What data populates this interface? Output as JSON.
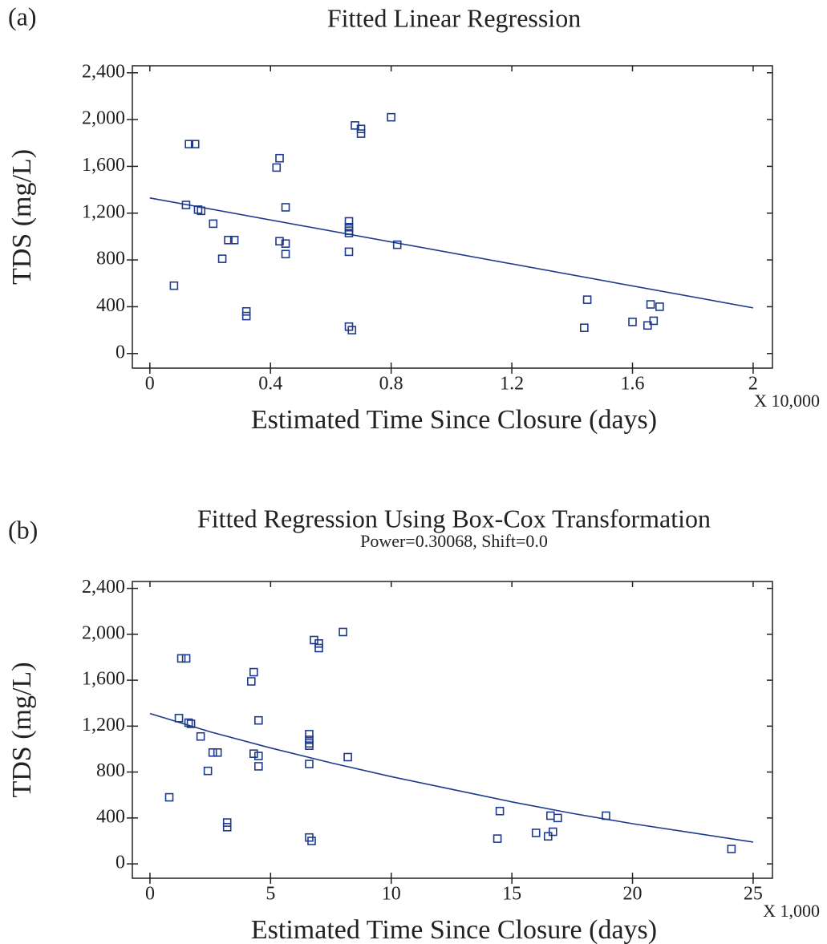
{
  "chart_data": [
    {
      "type": "scatter",
      "panel_label": "(a)",
      "title": "Fitted Linear Regression",
      "x_label": "Estimated Time Since Closure (days)",
      "y_label": "TDS (mg/L)",
      "x_multiplier": "X 10,000",
      "xlim": [
        -0.058,
        2.064
      ],
      "ylim": [
        -125,
        2460
      ],
      "xticks": [
        0,
        0.4,
        0.8,
        1.2,
        1.6,
        2
      ],
      "yticks": [
        0,
        400,
        800,
        {
          "value": 1200,
          "label": "1,200"
        },
        {
          "value": 1600,
          "label": "1,600"
        },
        {
          "value": 2000,
          "label": "2,000"
        },
        {
          "value": 2400,
          "label": "2,400"
        }
      ],
      "series": [
        {
          "color": "#1f3a8a",
          "x": [
            0.08,
            0.12,
            0.13,
            0.15,
            0.16,
            0.17,
            0.21,
            0.24,
            0.26,
            0.28,
            0.32,
            0.32,
            0.42,
            0.43,
            0.43,
            0.45,
            0.45,
            0.45,
            0.66,
            0.66,
            0.66,
            0.66,
            0.66,
            0.66,
            0.67,
            0.68,
            0.7,
            0.7,
            0.8,
            0.82,
            1.44,
            1.45,
            1.6,
            1.65,
            1.66,
            1.67,
            1.69
          ],
          "values": [
            580,
            1270,
            1790,
            1790,
            1230,
            1220,
            1110,
            810,
            970,
            970,
            360,
            320,
            1590,
            1670,
            960,
            940,
            1250,
            850,
            1130,
            1080,
            1050,
            1030,
            870,
            230,
            200,
            1950,
            1920,
            1880,
            2020,
            930,
            220,
            460,
            270,
            240,
            420,
            280,
            400
          ]
        }
      ],
      "fit": {
        "color": "#1f3a8a",
        "x": [
          0,
          2
        ],
        "values": [
          1330,
          390
        ]
      }
    },
    {
      "type": "scatter",
      "panel_label": "(b)",
      "title": "Fitted Regression Using Box-Cox Transformation",
      "subtitle": "Power=0.30068, Shift=0.0",
      "x_label": "Estimated Time Since Closure (days)",
      "y_label": "TDS (mg/L)",
      "x_multiplier": "X 1,000",
      "xlim": [
        -0.73,
        25.8
      ],
      "ylim": [
        -125,
        2460
      ],
      "xticks": [
        0,
        5,
        10,
        15,
        20,
        25
      ],
      "yticks": [
        0,
        400,
        800,
        {
          "value": 1200,
          "label": "1,200"
        },
        {
          "value": 1600,
          "label": "1,600"
        },
        {
          "value": 2000,
          "label": "2,000"
        },
        {
          "value": 2400,
          "label": "2,400"
        }
      ],
      "series": [
        {
          "color": "#1f3a8a",
          "x": [
            0.8,
            1.2,
            1.3,
            1.5,
            1.6,
            1.7,
            2.1,
            2.4,
            2.6,
            2.8,
            3.2,
            3.2,
            4.2,
            4.3,
            4.3,
            4.5,
            4.5,
            4.5,
            6.6,
            6.6,
            6.6,
            6.6,
            6.6,
            6.6,
            6.7,
            6.8,
            7.0,
            7.0,
            8.0,
            8.2,
            14.4,
            14.5,
            16.0,
            16.5,
            16.6,
            16.7,
            16.9,
            18.9,
            24.1
          ],
          "values": [
            580,
            1270,
            1790,
            1790,
            1230,
            1220,
            1110,
            810,
            970,
            970,
            360,
            320,
            1590,
            1670,
            960,
            940,
            1250,
            850,
            1130,
            1080,
            1050,
            1030,
            870,
            230,
            200,
            1950,
            1920,
            1880,
            2020,
            930,
            220,
            460,
            270,
            240,
            420,
            280,
            400,
            420,
            130
          ]
        }
      ],
      "fit": {
        "color": "#1f3a8a",
        "x": [
          0,
          2.5,
          5,
          7.5,
          10,
          12.5,
          15,
          17.5,
          20,
          22.5,
          25
        ],
        "values": [
          1310,
          1150,
          1010,
          880,
          760,
          650,
          540,
          440,
          350,
          270,
          190
        ]
      }
    }
  ]
}
